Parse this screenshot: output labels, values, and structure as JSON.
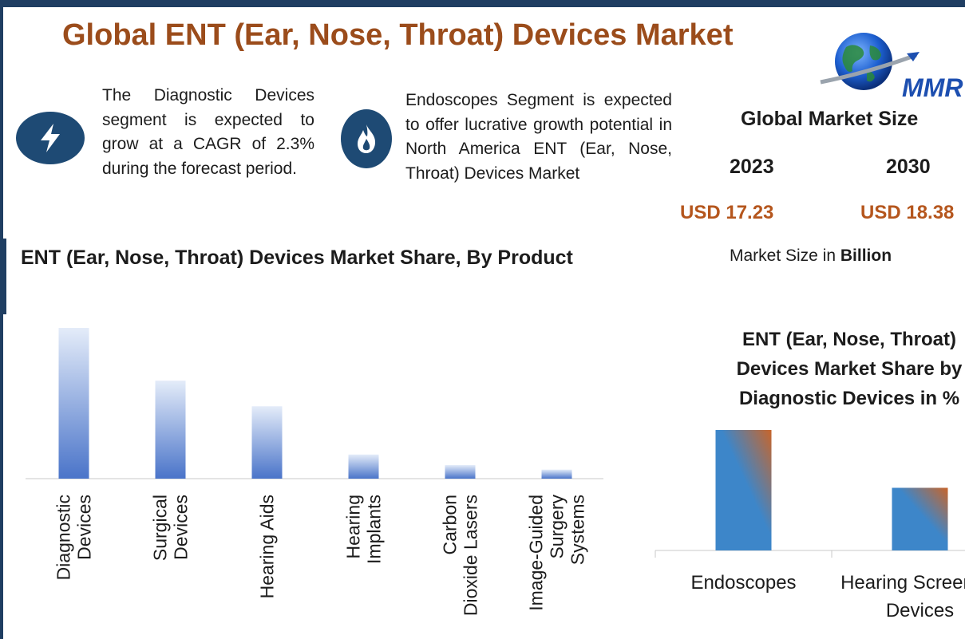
{
  "header": {
    "title": "Global ENT (Ear, Nose, Throat) Devices Market",
    "logo_text": "MMR"
  },
  "highlights": [
    {
      "icon": "lightning-icon",
      "text": "The Diagnostic Devices segment is expected to grow at a CAGR of 2.3% during the forecast period."
    },
    {
      "icon": "flame-icon",
      "text": "Endoscopes Segment is expected to offer lucrative growth potential in North America ENT (Ear, Nose, Throat) Devices Market"
    }
  ],
  "market_size": {
    "title": "Global Market Size",
    "year_a": "2023",
    "year_b": "2030",
    "value_a": "USD 17.23",
    "value_b": "USD 18.38",
    "unit_prefix": "Market Size in",
    "unit_bold": "Billion"
  },
  "colors": {
    "frame": "#1f3e62",
    "title": "#9b4c1b",
    "value": "#b5561d",
    "bar_light": "#e4ecf9",
    "bar_dark": "#4a74c9",
    "bar2_blue": "#3d86c9",
    "bar2_orange": "#c8652a"
  },
  "chart_data": [
    {
      "type": "bar",
      "title": "ENT (Ear, Nose, Throat) Devices Market Share, By Product",
      "categories": [
        [
          "Diagnostic",
          "Devices"
        ],
        [
          "Surgical",
          "Devices"
        ],
        [
          "Hearing Aids"
        ],
        [
          "Hearing",
          "Implants"
        ],
        [
          "Carbon",
          "Dioxide Lasers"
        ],
        [
          "Image-Guided",
          "Surgery",
          "Systems"
        ]
      ],
      "values": [
        100,
        65,
        48,
        16,
        9,
        6
      ],
      "ylim": [
        0,
        100
      ],
      "xlabel": "",
      "ylabel": "",
      "grid": false,
      "legend": "none"
    },
    {
      "type": "bar",
      "title_lines": [
        "ENT (Ear, Nose, Throat)",
        "Devices Market Share by",
        "Diagnostic Devices in %"
      ],
      "categories": [
        [
          "Endoscopes"
        ],
        [
          "Hearing Screening",
          "Devices"
        ]
      ],
      "values": [
        100,
        52
      ],
      "ylim": [
        0,
        100
      ],
      "xlabel": "",
      "ylabel": "",
      "grid": false,
      "legend": "none"
    }
  ]
}
